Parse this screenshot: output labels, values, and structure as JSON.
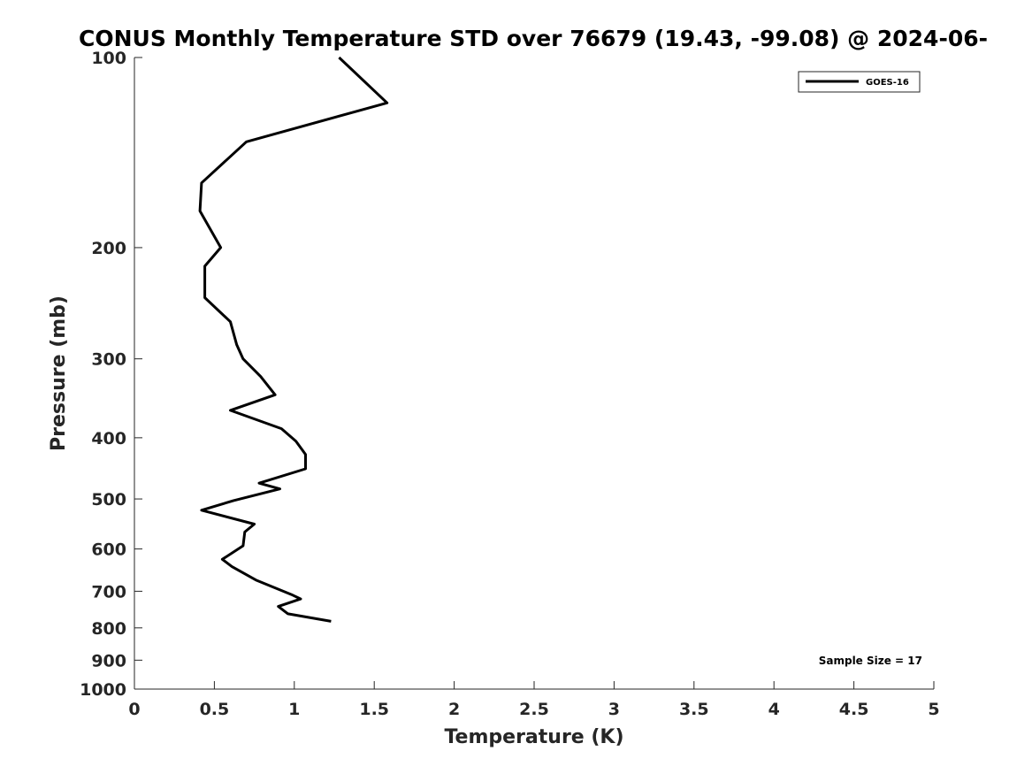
{
  "chart_data": {
    "type": "line",
    "title": "CONUS Monthly Temperature STD over 76679 (19.43, -99.08) @ 2024-06-",
    "xlabel": "Temperature (K)",
    "ylabel": "Pressure (mb)",
    "xlim": [
      0,
      5
    ],
    "ylim": [
      1000,
      100
    ],
    "y_scale": "log",
    "y_inverted": true,
    "grid": false,
    "legend_position": "top-right",
    "x_ticks": [
      0,
      0.5,
      1,
      1.5,
      2,
      2.5,
      3,
      3.5,
      4,
      4.5,
      5
    ],
    "x_tick_labels": [
      "0",
      "0.5",
      "1",
      "1.5",
      "2",
      "2.5",
      "3",
      "3.5",
      "4",
      "4.5",
      "5"
    ],
    "y_ticks": [
      100,
      200,
      300,
      400,
      500,
      600,
      700,
      800,
      900,
      1000
    ],
    "y_tick_labels": [
      "100",
      "200",
      "300",
      "400",
      "500",
      "600",
      "700",
      "800",
      "900",
      "1000"
    ],
    "series": [
      {
        "name": "GOES-16",
        "color": "#000000",
        "points": [
          {
            "temp": 1.28,
            "pressure": 100
          },
          {
            "temp": 1.58,
            "pressure": 118
          },
          {
            "temp": 0.7,
            "pressure": 136
          },
          {
            "temp": 0.42,
            "pressure": 158
          },
          {
            "temp": 0.41,
            "pressure": 175
          },
          {
            "temp": 0.54,
            "pressure": 200
          },
          {
            "temp": 0.44,
            "pressure": 214
          },
          {
            "temp": 0.44,
            "pressure": 240
          },
          {
            "temp": 0.6,
            "pressure": 262
          },
          {
            "temp": 0.64,
            "pressure": 285
          },
          {
            "temp": 0.68,
            "pressure": 300
          },
          {
            "temp": 0.79,
            "pressure": 320
          },
          {
            "temp": 0.88,
            "pressure": 342
          },
          {
            "temp": 0.6,
            "pressure": 362
          },
          {
            "temp": 0.92,
            "pressure": 387
          },
          {
            "temp": 1.01,
            "pressure": 405
          },
          {
            "temp": 1.07,
            "pressure": 425
          },
          {
            "temp": 1.07,
            "pressure": 448
          },
          {
            "temp": 0.78,
            "pressure": 472
          },
          {
            "temp": 0.91,
            "pressure": 482
          },
          {
            "temp": 0.62,
            "pressure": 503
          },
          {
            "temp": 0.42,
            "pressure": 521
          },
          {
            "temp": 0.75,
            "pressure": 548
          },
          {
            "temp": 0.69,
            "pressure": 564
          },
          {
            "temp": 0.68,
            "pressure": 593
          },
          {
            "temp": 0.55,
            "pressure": 623
          },
          {
            "temp": 0.61,
            "pressure": 640
          },
          {
            "temp": 0.76,
            "pressure": 672
          },
          {
            "temp": 0.99,
            "pressure": 710
          },
          {
            "temp": 1.04,
            "pressure": 720
          },
          {
            "temp": 0.9,
            "pressure": 740
          },
          {
            "temp": 0.96,
            "pressure": 760
          },
          {
            "temp": 1.23,
            "pressure": 781
          }
        ]
      }
    ],
    "annotations": [
      "Sample Size = 17"
    ]
  }
}
